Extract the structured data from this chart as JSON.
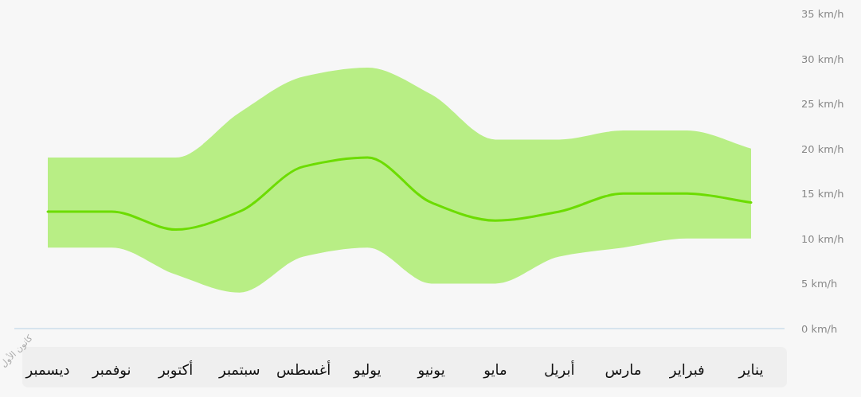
{
  "chart_data": {
    "type": "line",
    "categories": [
      "ديسمبر",
      "نوفمبر",
      "أكتوبر",
      "سبتمبر",
      "أغسطس",
      "يوليو",
      "يونيو",
      "مايو",
      "أبريل",
      "مارس",
      "فبراير",
      "يناير"
    ],
    "series": [
      {
        "color": "#6cdc00",
        "values": [
          13,
          13,
          11,
          13,
          18,
          19,
          14,
          12,
          13,
          15,
          15,
          14
        ],
        "lower": [
          9,
          9,
          6,
          4,
          8,
          9,
          5,
          5,
          8,
          9,
          10,
          10
        ],
        "upper": [
          19,
          19,
          19,
          24,
          28,
          29,
          26,
          21,
          21,
          22,
          22,
          20
        ]
      }
    ],
    "ylim": [
      0,
      35
    ],
    "yticks": [
      {
        "value": 0,
        "label": "0 km/h"
      },
      {
        "value": 5,
        "label": "5 km/h"
      },
      {
        "value": 10,
        "label": "10 km/h"
      },
      {
        "value": 15,
        "label": "15 km/h"
      },
      {
        "value": 20,
        "label": "20 km/h"
      },
      {
        "value": 25,
        "label": "25 km/h"
      },
      {
        "value": 30,
        "label": "30 km/h"
      },
      {
        "value": 35,
        "label": "35 km/h"
      }
    ],
    "annotations": [
      "كانون الأول"
    ],
    "marker": "none",
    "grid": false
  }
}
